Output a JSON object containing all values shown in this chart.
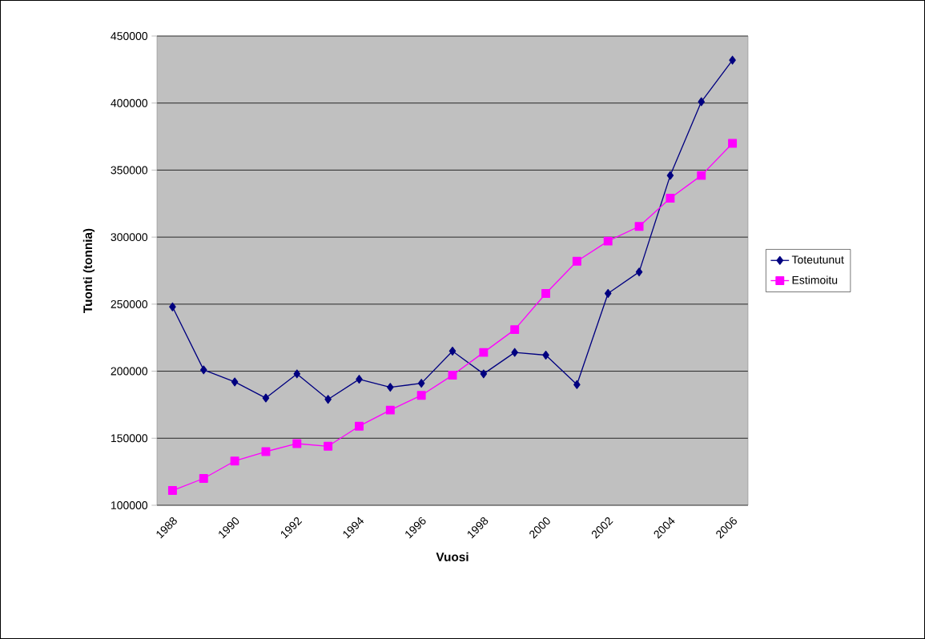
{
  "chart_data": {
    "type": "line",
    "xlabel": "Vuosi",
    "ylabel": "Tuonti (tonnia)",
    "categories": [
      "1988",
      null,
      "1990",
      null,
      "1992",
      null,
      "1994",
      null,
      "1996",
      null,
      "1998",
      null,
      "2000",
      null,
      "2002",
      null,
      "2004",
      null,
      "2006"
    ],
    "series": [
      {
        "name": "Toteutunut",
        "color": "#000080",
        "marker": "diamond",
        "values": [
          248000,
          201000,
          192000,
          180000,
          198000,
          179000,
          194000,
          188000,
          191000,
          215000,
          198000,
          214000,
          212000,
          190000,
          258000,
          274000,
          346000,
          401000,
          432000
        ]
      },
      {
        "name": "Estimoitu",
        "color": "#ff00ff",
        "marker": "square",
        "values": [
          111000,
          120000,
          133000,
          140000,
          146000,
          144000,
          159000,
          171000,
          182000,
          197000,
          214000,
          231000,
          258000,
          282000,
          297000,
          308000,
          329000,
          346000,
          370000
        ]
      }
    ],
    "ylim": [
      100000,
      450000
    ],
    "yticks": [
      100000,
      150000,
      200000,
      250000,
      300000,
      350000,
      400000,
      450000
    ],
    "grid": "y",
    "legend": "right",
    "line_style": "solid"
  }
}
